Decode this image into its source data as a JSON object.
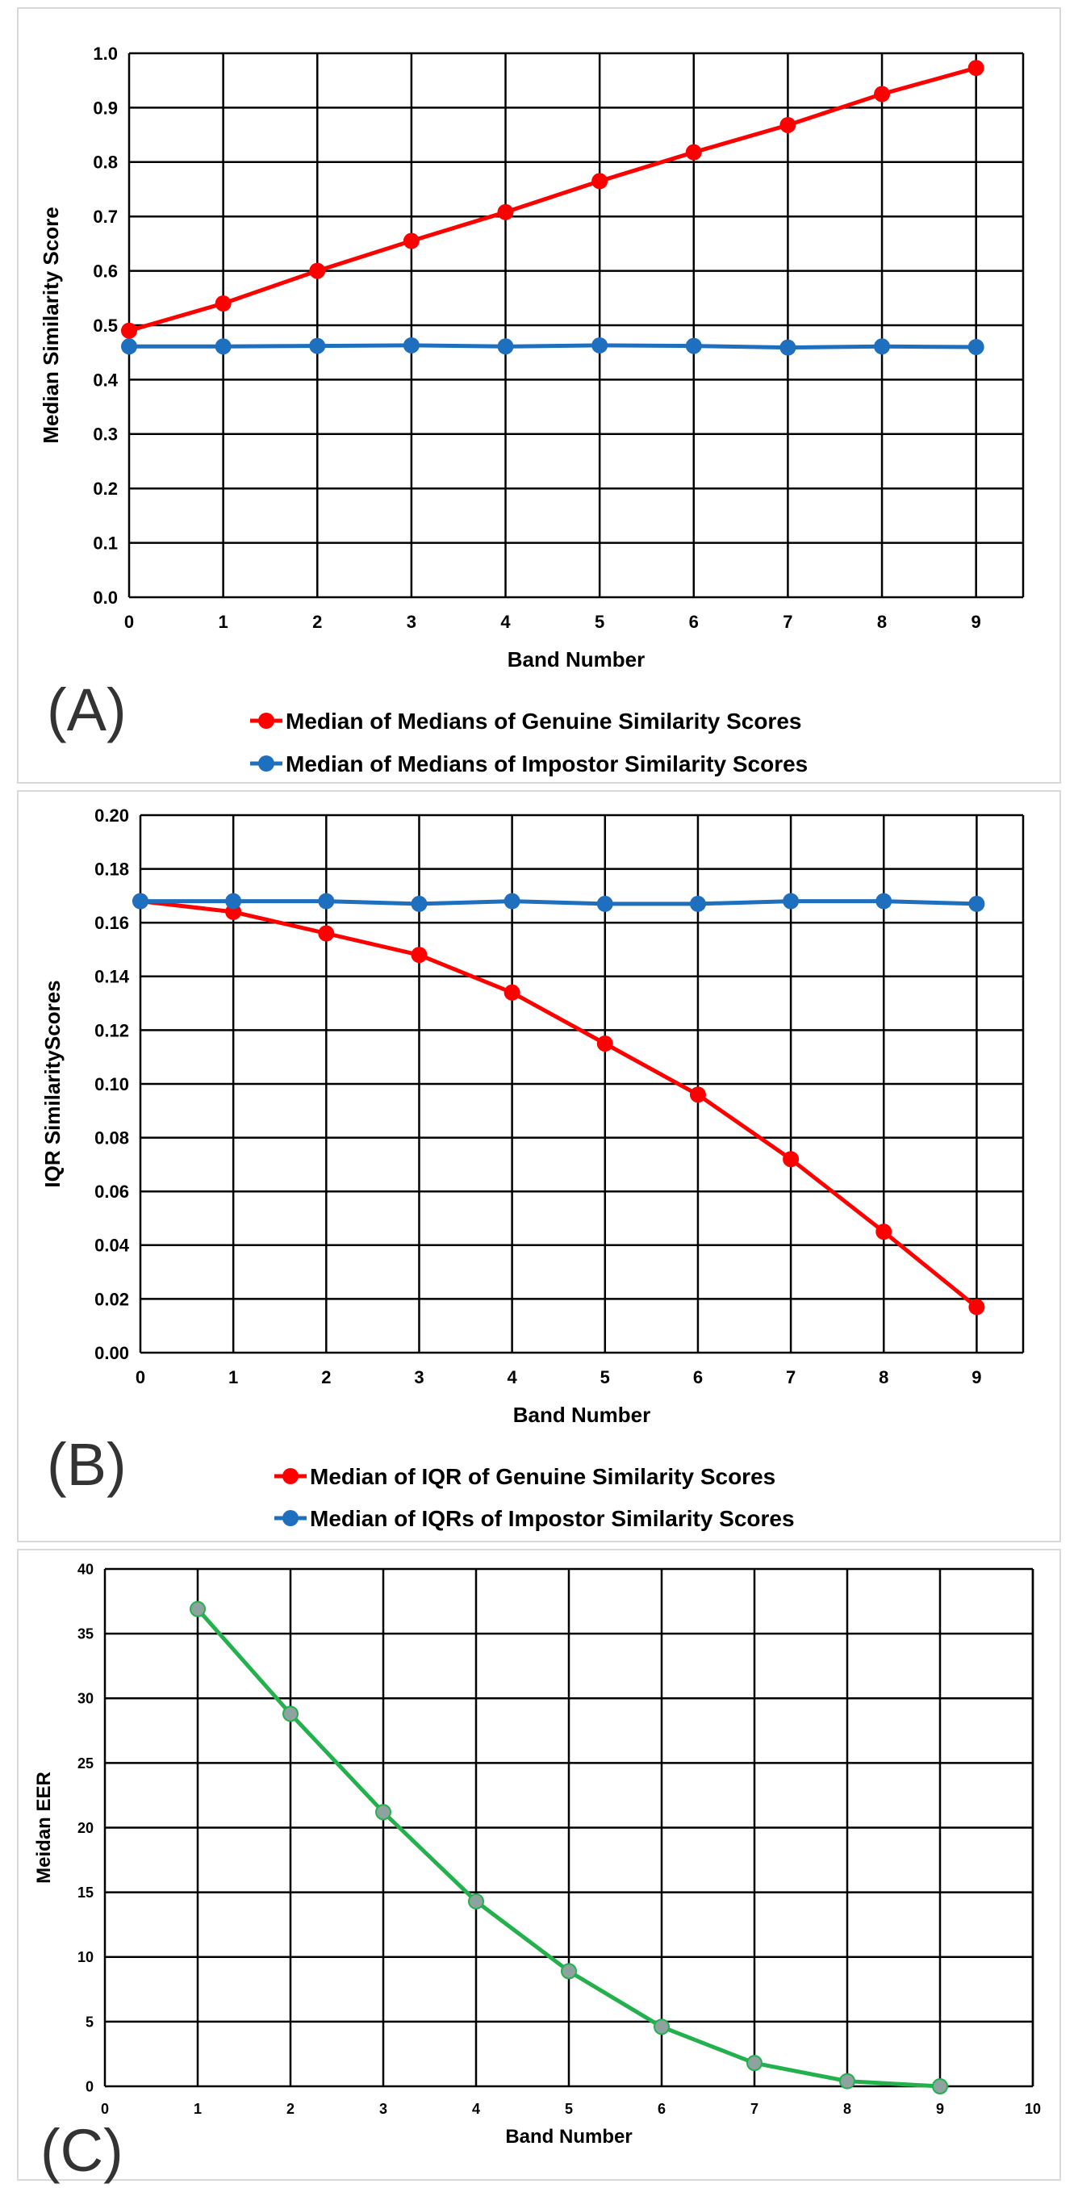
{
  "chart_data": [
    {
      "type": "line",
      "panel_label": "(A)",
      "title": "",
      "xlabel": "Band Number",
      "ylabel": "Median Similarity Score",
      "x": [
        0,
        1,
        2,
        3,
        4,
        5,
        6,
        7,
        8,
        9
      ],
      "xlim": [
        0,
        9.5
      ],
      "ylim": [
        0,
        1.0
      ],
      "yticks": [
        "0.0",
        "0.1",
        "0.2",
        "0.3",
        "0.4",
        "0.5",
        "0.6",
        "0.7",
        "0.8",
        "0.9",
        "1.0"
      ],
      "xticks": [
        "0",
        "1",
        "2",
        "3",
        "4",
        "5",
        "6",
        "7",
        "8",
        "9"
      ],
      "grid": true,
      "legend_position": "bottom",
      "series": [
        {
          "name": "Median of Medians of Genuine Similarity Scores",
          "color": "#ff0000",
          "values": [
            0.49,
            0.54,
            0.6,
            0.655,
            0.708,
            0.765,
            0.818,
            0.868,
            0.925,
            0.973
          ]
        },
        {
          "name": "Median of Medians of Impostor Similarity Scores",
          "color": "#1f6fbf",
          "values": [
            0.461,
            0.461,
            0.462,
            0.463,
            0.461,
            0.463,
            0.462,
            0.459,
            0.461,
            0.46
          ]
        }
      ]
    },
    {
      "type": "line",
      "panel_label": "(B)",
      "title": "",
      "xlabel": "Band Number",
      "ylabel": "IQR SimilarityScores",
      "x": [
        0,
        1,
        2,
        3,
        4,
        5,
        6,
        7,
        8,
        9
      ],
      "xlim": [
        0,
        9.5
      ],
      "ylim": [
        0,
        0.2
      ],
      "yticks": [
        "0.00",
        "0.02",
        "0.04",
        "0.06",
        "0.08",
        "0.10",
        "0.12",
        "0.14",
        "0.16",
        "0.18",
        "0.20"
      ],
      "xticks": [
        "0",
        "1",
        "2",
        "3",
        "4",
        "5",
        "6",
        "7",
        "8",
        "9"
      ],
      "grid": true,
      "legend_position": "bottom",
      "series": [
        {
          "name": "Median of IQR of Genuine Similarity Scores",
          "color": "#ff0000",
          "values": [
            0.168,
            0.164,
            0.156,
            0.148,
            0.134,
            0.115,
            0.096,
            0.072,
            0.045,
            0.017
          ]
        },
        {
          "name": "Median of IQRs of Impostor Similarity Scores",
          "color": "#1f6fbf",
          "values": [
            0.168,
            0.168,
            0.168,
            0.167,
            0.168,
            0.167,
            0.167,
            0.168,
            0.168,
            0.167
          ]
        }
      ]
    },
    {
      "type": "line",
      "panel_label": "(C)",
      "title": "",
      "xlabel": "Band Number",
      "ylabel": "Meidan EER",
      "x": [
        1,
        2,
        3,
        4,
        5,
        6,
        7,
        8,
        9
      ],
      "xlim": [
        0,
        10
      ],
      "ylim": [
        0,
        40
      ],
      "yticks": [
        "0",
        "5",
        "10",
        "15",
        "20",
        "25",
        "30",
        "35",
        "40"
      ],
      "xticks": [
        "0",
        "1",
        "2",
        "3",
        "4",
        "5",
        "6",
        "7",
        "8",
        "9",
        "10"
      ],
      "grid": true,
      "legend_position": "none",
      "series": [
        {
          "name": "Median EER",
          "color": "#22b14c",
          "marker_color": "#8ea3a0",
          "values": [
            36.9,
            28.8,
            21.2,
            14.3,
            8.9,
            4.6,
            1.8,
            0.4,
            0.0
          ]
        }
      ]
    }
  ]
}
